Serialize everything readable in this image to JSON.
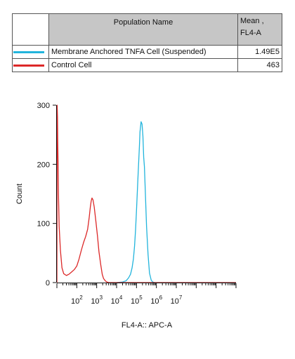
{
  "legend": {
    "header_name": "Population Name",
    "header_mean_line1": "Mean ,",
    "header_mean_line2": "FL4-A",
    "rows": [
      {
        "name": "Membrane Anchored TNFA Cell (Suspended)",
        "mean": "1.49E5",
        "color": "#22b4dc"
      },
      {
        "name": "Control Cell",
        "mean": "463",
        "color": "#dc2828"
      }
    ]
  },
  "chart_data": {
    "type": "line",
    "xlabel": "FL4-A:: APC-A",
    "ylabel": "Count",
    "x_scale": "log",
    "xlim": [
      10,
      10000000000
    ],
    "ylim": [
      0,
      300
    ],
    "y_ticks": [
      0,
      100,
      200,
      300
    ],
    "x_tick_labels": [
      {
        "base": "10",
        "exp": "2",
        "value": 100
      },
      {
        "base": "10",
        "exp": "3",
        "value": 1000
      },
      {
        "base": "10",
        "exp": "4",
        "value": 10000
      },
      {
        "base": "10",
        "exp": "5",
        "value": 100000
      },
      {
        "base": "10",
        "exp": "6",
        "value": 1000000
      },
      {
        "base": "10",
        "exp": "7",
        "value": 10000000
      }
    ],
    "series": [
      {
        "name": "Membrane Anchored TNFA Cell (Suspended)",
        "color": "#22b4dc",
        "x": [
          10000,
          20000,
          30000,
          40000,
          50000,
          60000,
          70000,
          80000,
          90000,
          100000,
          120000,
          140000,
          150000,
          170000,
          190000,
          210000,
          230000,
          250000,
          280000,
          320000,
          380000,
          450000,
          550000,
          650000,
          800000,
          1000000,
          2000000,
          10000000,
          100000000,
          1000000000,
          10000000000
        ],
        "y": [
          0,
          1,
          3,
          8,
          14,
          25,
          40,
          62,
          90,
          122,
          182,
          230,
          255,
          272,
          268,
          248,
          212,
          196,
          150,
          95,
          48,
          16,
          4,
          1,
          0,
          0,
          0,
          0,
          0,
          0,
          0
        ]
      },
      {
        "name": "Control Cell",
        "color": "#dc2828",
        "x": [
          10,
          10.3,
          10.7,
          11,
          11.5,
          12,
          13,
          15,
          18,
          22,
          30,
          40,
          55,
          75,
          100,
          130,
          170,
          220,
          280,
          350,
          420,
          480,
          530,
          580,
          650,
          750,
          900,
          1100,
          1300,
          1600,
          1900,
          2200,
          2700,
          3200,
          4000,
          5000,
          7000,
          10000,
          100000,
          1000000,
          10000000,
          10000000000
        ],
        "y": [
          0,
          300,
          280,
          240,
          200,
          150,
          95,
          55,
          25,
          15,
          12,
          14,
          18,
          22,
          28,
          40,
          55,
          68,
          78,
          90,
          110,
          128,
          138,
          143,
          140,
          128,
          105,
          78,
          52,
          30,
          14,
          7,
          3,
          1,
          0,
          0,
          0,
          0,
          0,
          0,
          0,
          0
        ]
      }
    ]
  }
}
